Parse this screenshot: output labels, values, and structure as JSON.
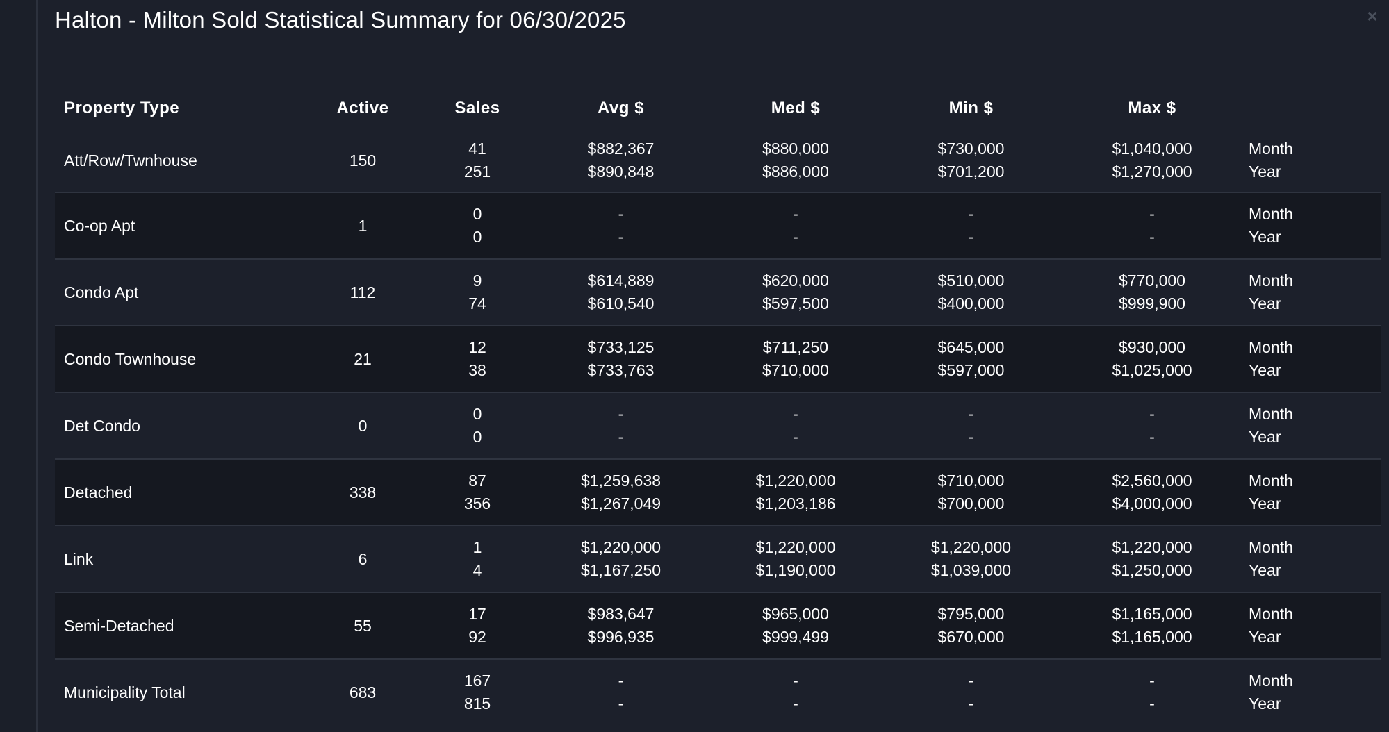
{
  "modal": {
    "title": "Halton - Milton Sold Statistical Summary for 06/30/2025",
    "close_label": "×"
  },
  "table": {
    "headers": {
      "property_type": "Property Type",
      "active": "Active",
      "sales": "Sales",
      "avg": "Avg $",
      "med": "Med $",
      "min": "Min $",
      "max": "Max $"
    },
    "rows": [
      {
        "type": "Att/Row/Twnhouse",
        "active": "150",
        "sales_month": "41",
        "sales_year": "251",
        "avg_month": "$882,367",
        "avg_year": "$890,848",
        "med_month": "$880,000",
        "med_year": "$886,000",
        "min_month": "$730,000",
        "min_year": "$701,200",
        "max_month": "$1,040,000",
        "max_year": "$1,270,000",
        "period_month": "Month",
        "period_year": "Year"
      },
      {
        "type": "Co-op Apt",
        "active": "1",
        "sales_month": "0",
        "sales_year": "0",
        "avg_month": "-",
        "avg_year": "-",
        "med_month": "-",
        "med_year": "-",
        "min_month": "-",
        "min_year": "-",
        "max_month": "-",
        "max_year": "-",
        "period_month": "Month",
        "period_year": "Year"
      },
      {
        "type": "Condo Apt",
        "active": "112",
        "sales_month": "9",
        "sales_year": "74",
        "avg_month": "$614,889",
        "avg_year": "$610,540",
        "med_month": "$620,000",
        "med_year": "$597,500",
        "min_month": "$510,000",
        "min_year": "$400,000",
        "max_month": "$770,000",
        "max_year": "$999,900",
        "period_month": "Month",
        "period_year": "Year"
      },
      {
        "type": "Condo Townhouse",
        "active": "21",
        "sales_month": "12",
        "sales_year": "38",
        "avg_month": "$733,125",
        "avg_year": "$733,763",
        "med_month": "$711,250",
        "med_year": "$710,000",
        "min_month": "$645,000",
        "min_year": "$597,000",
        "max_month": "$930,000",
        "max_year": "$1,025,000",
        "period_month": "Month",
        "period_year": "Year"
      },
      {
        "type": "Det Condo",
        "active": "0",
        "sales_month": "0",
        "sales_year": "0",
        "avg_month": "-",
        "avg_year": "-",
        "med_month": "-",
        "med_year": "-",
        "min_month": "-",
        "min_year": "-",
        "max_month": "-",
        "max_year": "-",
        "period_month": "Month",
        "period_year": "Year"
      },
      {
        "type": "Detached",
        "active": "338",
        "sales_month": "87",
        "sales_year": "356",
        "avg_month": "$1,259,638",
        "avg_year": "$1,267,049",
        "med_month": "$1,220,000",
        "med_year": "$1,203,186",
        "min_month": "$710,000",
        "min_year": "$700,000",
        "max_month": "$2,560,000",
        "max_year": "$4,000,000",
        "period_month": "Month",
        "period_year": "Year"
      },
      {
        "type": "Link",
        "active": "6",
        "sales_month": "1",
        "sales_year": "4",
        "avg_month": "$1,220,000",
        "avg_year": "$1,167,250",
        "med_month": "$1,220,000",
        "med_year": "$1,190,000",
        "min_month": "$1,220,000",
        "min_year": "$1,039,000",
        "max_month": "$1,220,000",
        "max_year": "$1,250,000",
        "period_month": "Month",
        "period_year": "Year"
      },
      {
        "type": "Semi-Detached",
        "active": "55",
        "sales_month": "17",
        "sales_year": "92",
        "avg_month": "$983,647",
        "avg_year": "$996,935",
        "med_month": "$965,000",
        "med_year": "$999,499",
        "min_month": "$795,000",
        "min_year": "$670,000",
        "max_month": "$1,165,000",
        "max_year": "$1,165,000",
        "period_month": "Month",
        "period_year": "Year"
      },
      {
        "type": "Municipality Total",
        "active": "683",
        "sales_month": "167",
        "sales_year": "815",
        "avg_month": "-",
        "avg_year": "-",
        "med_month": "-",
        "med_year": "-",
        "min_month": "-",
        "min_year": "-",
        "max_month": "-",
        "max_year": "-",
        "period_month": "Month",
        "period_year": "Year"
      }
    ]
  }
}
